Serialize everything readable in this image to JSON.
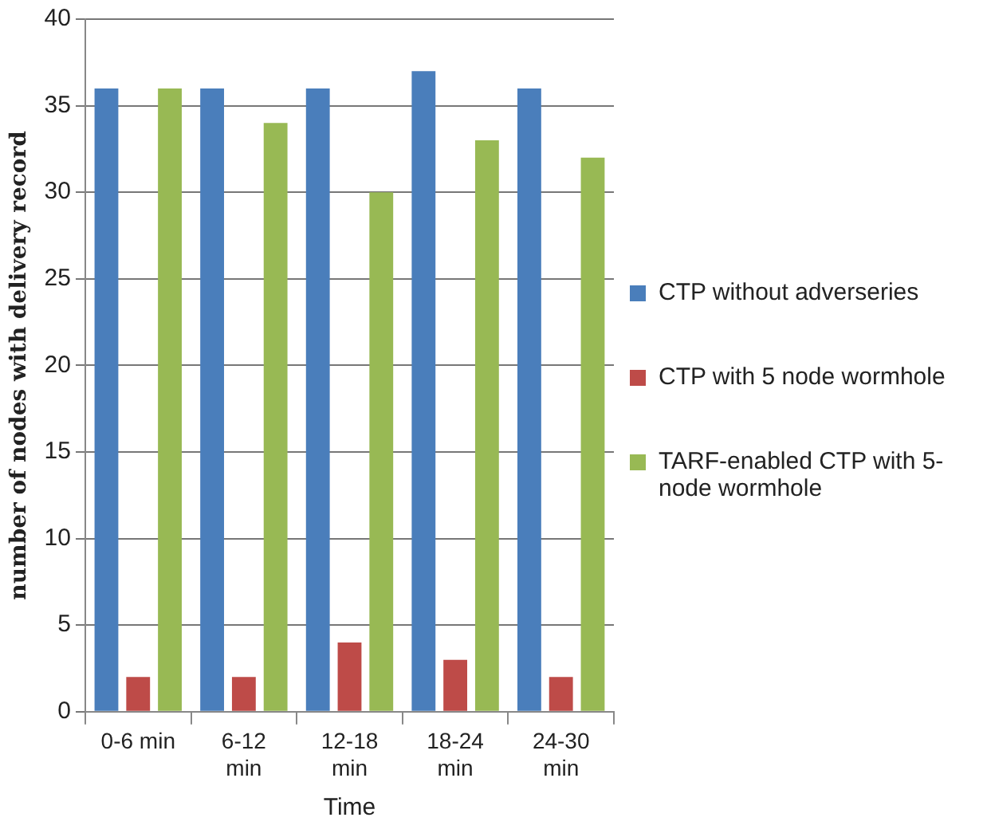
{
  "chart_data": {
    "type": "bar",
    "xlabel": "Time",
    "ylabel": "number of nodes with delivery record",
    "categories": [
      "0-6 min",
      "6-12 min",
      "12-18 min",
      "18-24 min",
      "24-30 min"
    ],
    "series": [
      {
        "name": "CTP without adverseries",
        "color": "#4a7ebb",
        "values": [
          36,
          36,
          36,
          37,
          36
        ]
      },
      {
        "name": "CTP with 5 node wormhole",
        "color": "#be4b48",
        "values": [
          2,
          2,
          4,
          3,
          2
        ]
      },
      {
        "name": "TARF-enabled CTP with 5-node wormhole",
        "color": "#98b954",
        "values": [
          36,
          34,
          30,
          33,
          32
        ]
      }
    ],
    "ylim": [
      0,
      40
    ],
    "yticks": [
      0,
      5,
      10,
      15,
      20,
      25,
      30,
      35,
      40
    ],
    "grid": "y",
    "legend": "right"
  }
}
